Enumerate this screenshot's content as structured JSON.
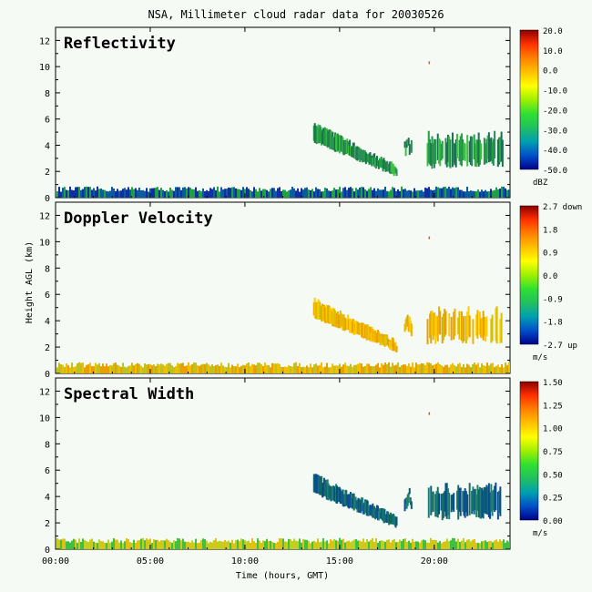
{
  "chart_data": {
    "type": "heatmap",
    "title": "NSA, Millimeter cloud radar data for 20030526",
    "xlabel": "Time (hours, GMT)",
    "ylabel": "Height AGL (km)",
    "x_ticks": [
      "00:00",
      "05:00",
      "10:00",
      "15:00",
      "20:00"
    ],
    "x_tick_hours": [
      0,
      5,
      10,
      15,
      20
    ],
    "xlim_hours": [
      0,
      24
    ],
    "y_ticks": [
      "0",
      "2",
      "4",
      "6",
      "8",
      "10",
      "12"
    ],
    "ylim_km": [
      0,
      13
    ],
    "panels": [
      {
        "name": "Reflectivity",
        "unit": "dBZ",
        "colorbar_labels": [
          "20.0",
          "10.0",
          "0.0",
          "-10.0",
          "-20.0",
          "-30.0",
          "-40.0",
          "-50.0"
        ],
        "colorbar_range": [
          -50,
          20
        ],
        "palette": [
          "#00008b",
          "#0050c8",
          "#00a0b0",
          "#20c060",
          "#30e030",
          "#a0f000",
          "#ffff00",
          "#ffc000",
          "#ff8000",
          "#ff3000",
          "#8b0000"
        ],
        "echo_colors": [
          "#20a040",
          "#2d8a58",
          "#3cc040",
          "#1a7050"
        ],
        "low_colors": [
          "#1030a0",
          "#0a5c9c",
          "#20a040"
        ]
      },
      {
        "name": "Doppler Velocity",
        "unit": "m/s",
        "colorbar_labels": [
          "2.7 down",
          "1.8",
          "0.9",
          "0.0",
          "-0.9",
          "-1.8",
          "-2.7 up"
        ],
        "colorbar_range": [
          -2.7,
          2.7
        ],
        "palette": [
          "#00008b",
          "#0050c8",
          "#00a0b0",
          "#20c060",
          "#30e030",
          "#a0f000",
          "#ffff00",
          "#ffc000",
          "#ff8000",
          "#ff3000",
          "#8b0000"
        ],
        "echo_colors": [
          "#f0b000",
          "#ffcc00",
          "#e8a000",
          "#d8c000"
        ],
        "low_colors": [
          "#e8a000",
          "#f0c000",
          "#c0c020"
        ]
      },
      {
        "name": "Spectral Width",
        "unit": "m/s",
        "colorbar_labels": [
          "1.50",
          "1.25",
          "1.00",
          "0.75",
          "0.50",
          "0.25",
          "0.00"
        ],
        "colorbar_range": [
          0,
          1.5
        ],
        "palette": [
          "#00008b",
          "#0050c8",
          "#00a0b0",
          "#20c060",
          "#30e030",
          "#a0f000",
          "#ffff00",
          "#ffc000",
          "#ff8000",
          "#ff3000",
          "#8b0000"
        ],
        "echo_colors": [
          "#0a5c7c",
          "#1a7060",
          "#0a4c8c",
          "#208070"
        ],
        "low_colors": [
          "#c0d020",
          "#40c040",
          "#e0c010"
        ]
      }
    ]
  }
}
